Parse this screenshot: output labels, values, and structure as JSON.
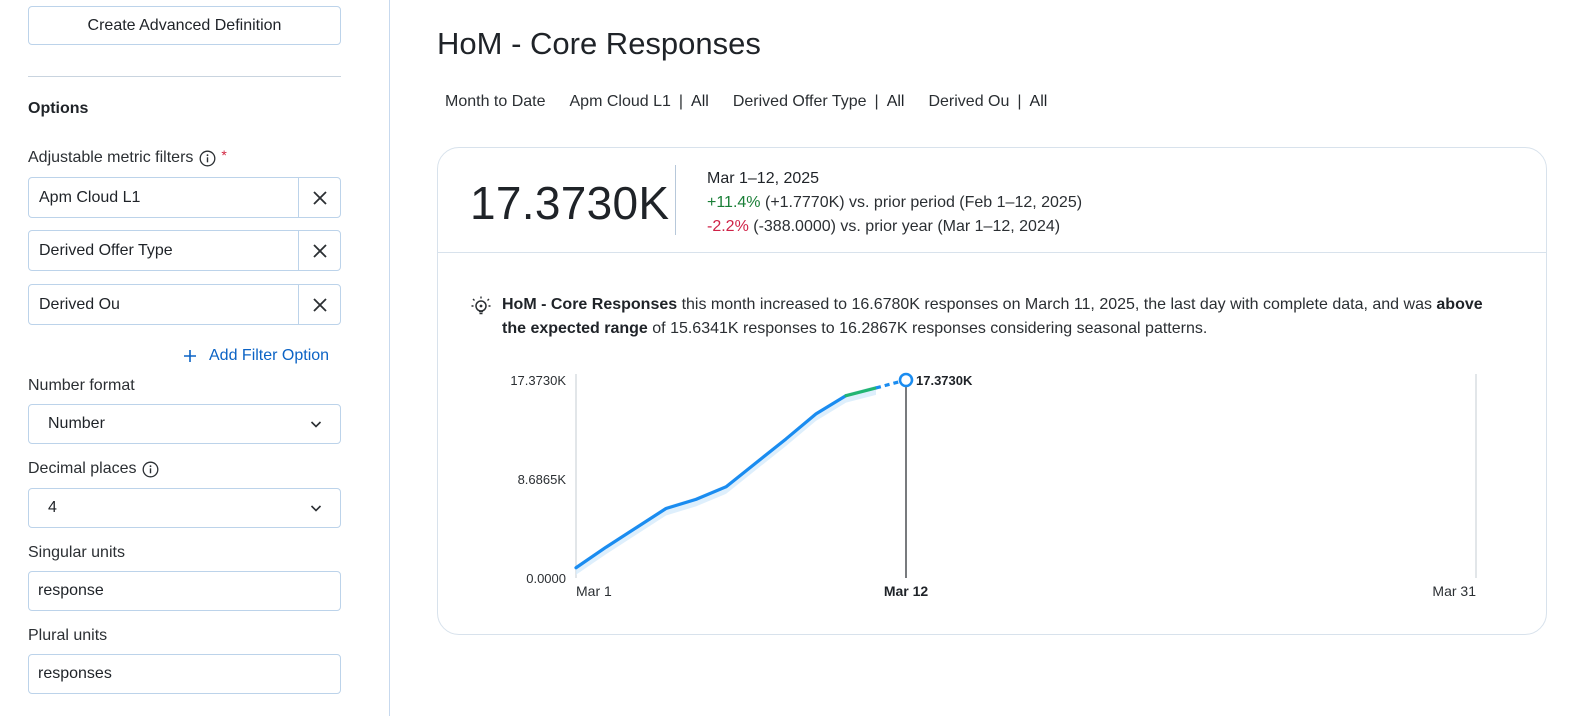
{
  "sidebar": {
    "create_button": "Create Advanced Definition",
    "options_title": "Options",
    "adjustable_label": "Adjustable metric filters",
    "required_mark": "*",
    "filters": [
      "Apm Cloud L1",
      "Derived Offer Type",
      "Derived Ou"
    ],
    "add_filter": "Add Filter Option",
    "number_format_label": "Number format",
    "number_format_value": "Number",
    "decimal_label": "Decimal places",
    "decimal_value": "4",
    "singular_label": "Singular units",
    "singular_value": "response",
    "plural_label": "Plural units",
    "plural_value": "responses"
  },
  "main": {
    "title": "HoM - Core Responses",
    "filter_bar": {
      "period": "Month to Date",
      "chips": [
        {
          "name": "Apm Cloud L1",
          "sep": "|",
          "value": "All"
        },
        {
          "name": "Derived Offer Type",
          "sep": "|",
          "value": "All"
        },
        {
          "name": "Derived Ou",
          "sep": "|",
          "value": "All"
        }
      ]
    },
    "summary": {
      "value": "17.3730K",
      "period": "Mar 1–12, 2025",
      "prior_period_change": "+11.4%",
      "prior_period_text": "(+1.7770K) vs. prior period (Feb 1–12, 2025)",
      "prior_year_change": "-2.2%",
      "prior_year_text": "(-388.0000) vs. prior year (Mar 1–12, 2024)"
    },
    "insight": {
      "metric": "HoM - Core Responses",
      "text1": " this month increased to 16.6780K responses on March 11, 2025, the last day with complete data, and was ",
      "emph": "above the expected range",
      "text2": " of 15.6341K responses to 16.2867K responses considering seasonal patterns."
    }
  },
  "colors": {
    "accent": "#0b63c5",
    "line": "#1a8cf0",
    "line_up": "#22b573",
    "band": "#d6ebfb",
    "positive": "#1a7f37",
    "negative": "#cf2247"
  },
  "chart_data": {
    "type": "line",
    "title": "",
    "xlabel": "",
    "ylabel": "",
    "x_ticks": [
      "Mar 1",
      "Mar 12",
      "Mar 31"
    ],
    "x_range": [
      1,
      31
    ],
    "y_ticks": [
      "17.3730K",
      "8.6865K",
      "0.0000"
    ],
    "ylim": [
      0,
      17373
    ],
    "series": [
      {
        "x": [
          1,
          2,
          3,
          4,
          5,
          6,
          7,
          8,
          9,
          10,
          11
        ],
        "y": [
          900,
          2700,
          4400,
          6100,
          6900,
          8000,
          10100,
          12200,
          14400,
          16000,
          16678
        ]
      }
    ],
    "projection": {
      "x": [
        11,
        12
      ],
      "y": [
        16678,
        17373
      ]
    },
    "current_point": {
      "x": 12,
      "y": 17373,
      "label": "17.3730K"
    },
    "expected_range": {
      "x": 11,
      "low": 15634.1,
      "high": 16286.7
    },
    "grid": false
  }
}
